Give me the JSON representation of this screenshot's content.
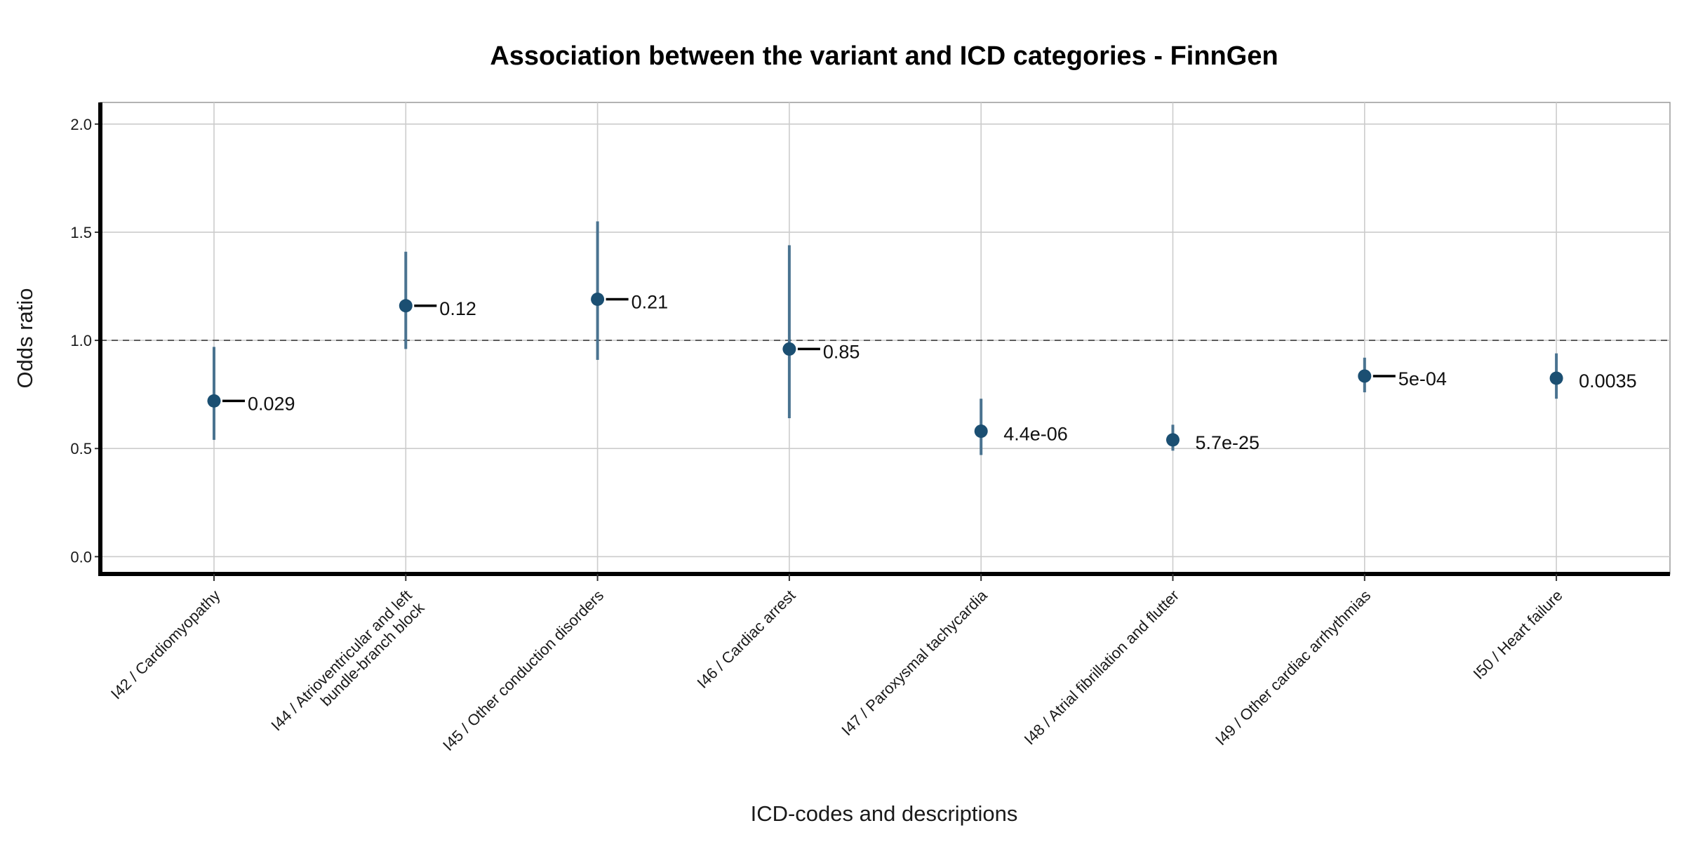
{
  "chart_data": {
    "type": "scatter",
    "title": "Association between the variant and ICD categories - FinnGen",
    "xlabel": "ICD-codes and descriptions",
    "ylabel": "Odds ratio",
    "ylim": [
      -0.08,
      2.1
    ],
    "yticks": [
      "0.0",
      "0.5",
      "1.0",
      "1.5",
      "2.0"
    ],
    "reference_line": 1.0,
    "grid": true,
    "colors": {
      "point": "#1b4f72",
      "errorbar": "#4a7390",
      "leader": "#000000",
      "grid": "#cccccc",
      "reference": "#555555"
    },
    "categories": [
      [
        "I42 / Cardiomyopathy"
      ],
      [
        "I44 / Atrioventricular and left",
        "bundle-branch block"
      ],
      [
        "I45 / Other conduction disorders"
      ],
      [
        "I46 / Cardiac arrest"
      ],
      [
        "I47 / Paroxysmal tachycardia"
      ],
      [
        "I48 / Atrial fibrillation and flutter"
      ],
      [
        "I49 / Other cardiac arrhythmias"
      ],
      [
        "I50 / Heart failure"
      ]
    ],
    "series": [
      {
        "or": [
          0.72,
          1.16,
          1.19,
          0.96,
          0.58,
          0.54,
          0.835,
          0.825
        ],
        "lower": [
          0.54,
          0.96,
          0.91,
          0.64,
          0.47,
          0.49,
          0.76,
          0.73
        ],
        "upper": [
          0.97,
          1.41,
          1.55,
          1.44,
          0.73,
          0.61,
          0.92,
          0.94
        ],
        "p_labels": [
          "0.029",
          "0.12",
          "0.21",
          "0.85",
          "4.4e-06",
          "5.7e-25",
          "5e-04",
          "0.0035"
        ],
        "has_leader": [
          true,
          true,
          true,
          true,
          false,
          false,
          true,
          false
        ]
      }
    ]
  }
}
